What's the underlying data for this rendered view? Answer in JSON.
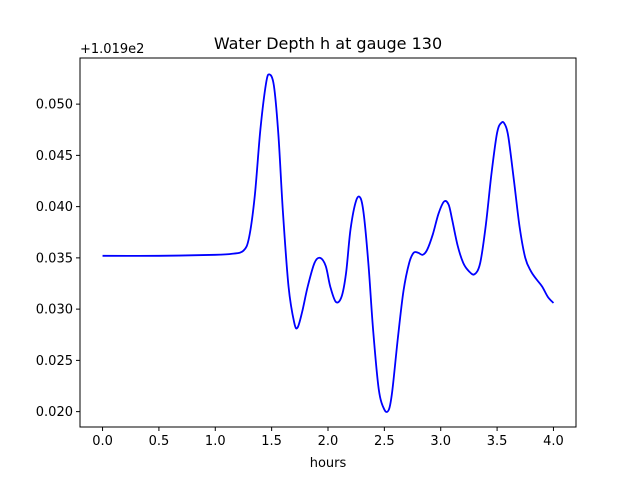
{
  "chart_data": {
    "type": "line",
    "title": "Water Depth h at gauge 130",
    "xlabel": "hours",
    "ylabel": "",
    "y_offset_label": "+1.019e2",
    "xlim": [
      -0.2,
      4.2
    ],
    "ylim": [
      0.0185,
      0.0545
    ],
    "x_ticks": [
      0.0,
      0.5,
      1.0,
      1.5,
      2.0,
      2.5,
      3.0,
      3.5,
      4.0
    ],
    "x_tick_labels": [
      "0.0",
      "0.5",
      "1.0",
      "1.5",
      "2.0",
      "2.5",
      "3.0",
      "3.5",
      "4.0"
    ],
    "y_ticks": [
      0.02,
      0.025,
      0.03,
      0.035,
      0.04,
      0.045,
      0.05
    ],
    "y_tick_labels": [
      "0.020",
      "0.025",
      "0.030",
      "0.035",
      "0.040",
      "0.045",
      "0.050"
    ],
    "grid": false,
    "series": [
      {
        "color": "#0000ff",
        "x": [
          0.0,
          0.5,
          1.0,
          1.15,
          1.25,
          1.3,
          1.35,
          1.4,
          1.45,
          1.48,
          1.52,
          1.56,
          1.6,
          1.65,
          1.7,
          1.73,
          1.77,
          1.82,
          1.88,
          1.93,
          1.98,
          2.02,
          2.07,
          2.12,
          2.16,
          2.2,
          2.25,
          2.29,
          2.32,
          2.36,
          2.4,
          2.45,
          2.5,
          2.54,
          2.57,
          2.62,
          2.67,
          2.72,
          2.76,
          2.8,
          2.84,
          2.88,
          2.93,
          2.98,
          3.03,
          3.07,
          3.1,
          3.15,
          3.2,
          3.25,
          3.3,
          3.35,
          3.4,
          3.45,
          3.5,
          3.54,
          3.57,
          3.6,
          3.65,
          3.7,
          3.75,
          3.8,
          3.85,
          3.9,
          3.95,
          4.0
        ],
        "y": [
          0.0352,
          0.0352,
          0.0353,
          0.0354,
          0.0357,
          0.037,
          0.041,
          0.0475,
          0.052,
          0.0529,
          0.0518,
          0.047,
          0.0395,
          0.0322,
          0.0287,
          0.0282,
          0.0297,
          0.0322,
          0.0345,
          0.035,
          0.0342,
          0.0322,
          0.0307,
          0.0312,
          0.0335,
          0.0378,
          0.0406,
          0.0408,
          0.039,
          0.0342,
          0.028,
          0.0222,
          0.0202,
          0.0202,
          0.022,
          0.0272,
          0.0318,
          0.0345,
          0.0355,
          0.0355,
          0.0353,
          0.0358,
          0.0373,
          0.0393,
          0.0405,
          0.0402,
          0.0388,
          0.0362,
          0.0345,
          0.0337,
          0.0334,
          0.0345,
          0.0382,
          0.0432,
          0.0472,
          0.0482,
          0.048,
          0.0468,
          0.0425,
          0.038,
          0.035,
          0.0337,
          0.0329,
          0.0322,
          0.0312,
          0.0306
        ]
      }
    ]
  }
}
